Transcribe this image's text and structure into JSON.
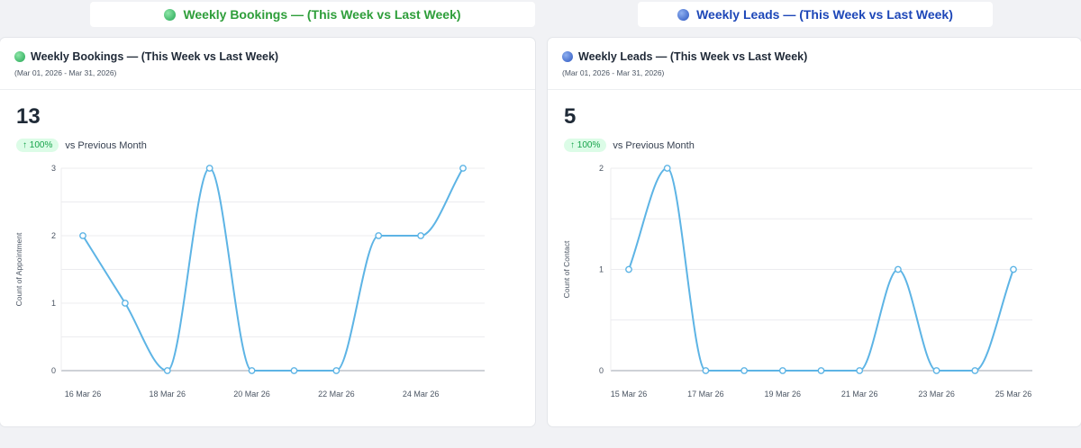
{
  "tabs": [
    {
      "label": "Weekly Bookings — (This Week vs Last Week)",
      "color": "#2e9e3a",
      "dot": "#3fbf6a"
    },
    {
      "label": "Weekly Leads — (This Week vs Last Week)",
      "color": "#1d47b8",
      "dot": "#3867c9"
    }
  ],
  "cards": [
    {
      "title": "Weekly Bookings — (This Week vs Last Week)",
      "date_range": "(Mar 01, 2026 - Mar 31, 2026)",
      "kpi": "13",
      "delta": "↑ 100%",
      "delta_label": "vs Previous Month"
    },
    {
      "title": "Weekly Leads — (This Week vs Last Week)",
      "date_range": "(Mar 01, 2026 - Mar 31, 2026)",
      "kpi": "5",
      "delta": "↑ 100%",
      "delta_label": "vs Previous Month"
    }
  ],
  "chart_data": [
    {
      "type": "line",
      "ylabel": "Count of Appointment",
      "ylim": [
        0,
        3
      ],
      "yticks": [
        0,
        1,
        2,
        3
      ],
      "grid": true,
      "x": [
        "16 Mar 26",
        "17 Mar 26",
        "18 Mar 26",
        "19 Mar 26",
        "20 Mar 26",
        "21 Mar 26",
        "22 Mar 26",
        "23 Mar 26",
        "24 Mar 26",
        "25 Mar 26"
      ],
      "xtick_labels": [
        "16 Mar 26",
        "18 Mar 26",
        "20 Mar 26",
        "22 Mar 26",
        "24 Mar 26"
      ],
      "values": [
        2,
        1,
        0,
        3,
        0,
        0,
        0,
        2,
        2,
        3
      ],
      "color": "#5db4e5"
    },
    {
      "type": "line",
      "ylabel": "Count of Contact",
      "ylim": [
        0,
        2
      ],
      "yticks": [
        0,
        1,
        2
      ],
      "grid": true,
      "x": [
        "15 Mar 26",
        "16 Mar 26",
        "17 Mar 26",
        "18 Mar 26",
        "19 Mar 26",
        "20 Mar 26",
        "21 Mar 26",
        "22 Mar 26",
        "23 Mar 26",
        "24 Mar 26",
        "25 Mar 26"
      ],
      "xtick_labels": [
        "15 Mar 26",
        "17 Mar 26",
        "19 Mar 26",
        "21 Mar 26",
        "23 Mar 26",
        "25 Mar 26"
      ],
      "values": [
        1,
        2,
        0,
        0,
        0,
        0,
        0,
        1,
        0,
        0,
        1
      ],
      "color": "#5db4e5"
    }
  ]
}
